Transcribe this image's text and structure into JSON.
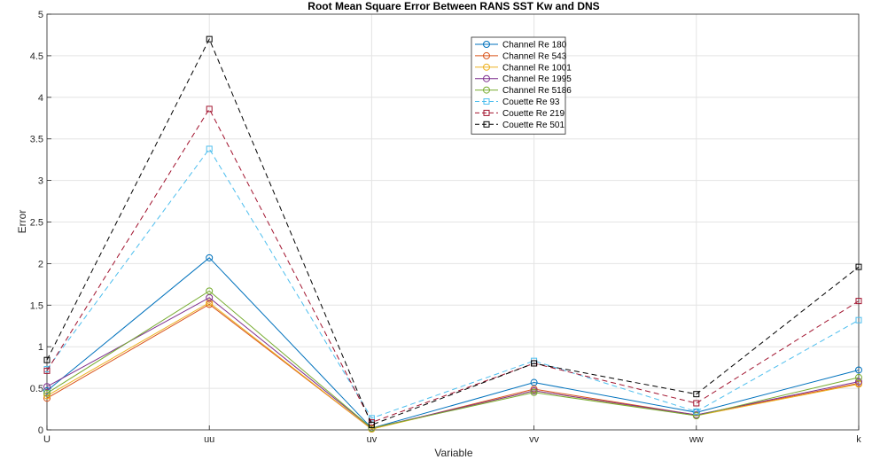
{
  "chart_data": {
    "type": "line",
    "title": "Root Mean Square Error Between RANS SST Kw and DNS",
    "xlabel": "Variable",
    "ylabel": "Error",
    "categories": [
      "U",
      "uu",
      "uv",
      "vv",
      "ww",
      "k"
    ],
    "ylim": [
      0,
      5
    ],
    "yticks": [
      0,
      0.5,
      1,
      1.5,
      2,
      2.5,
      3,
      3.5,
      4,
      4.5,
      5
    ],
    "ytick_labels": [
      "0",
      "0.5",
      "1",
      "1.5",
      "2",
      "2.5",
      "3",
      "3.5",
      "4",
      "4.5",
      "5"
    ],
    "grid": true,
    "legend_position": "top-center",
    "series": [
      {
        "name": "Channel Re 180",
        "color": "#0072BD",
        "marker": "circle",
        "dash": "solid",
        "values": [
          0.47,
          2.07,
          0.02,
          0.57,
          0.21,
          0.72
        ]
      },
      {
        "name": "Channel Re 543",
        "color": "#D95319",
        "marker": "circle",
        "dash": "solid",
        "values": [
          0.38,
          1.51,
          0.01,
          0.49,
          0.18,
          0.56
        ]
      },
      {
        "name": "Channel Re 1001",
        "color": "#EDB120",
        "marker": "circle",
        "dash": "solid",
        "values": [
          0.41,
          1.53,
          0.01,
          0.47,
          0.17,
          0.55
        ]
      },
      {
        "name": "Channel Re 1995",
        "color": "#7E2F8E",
        "marker": "circle",
        "dash": "solid",
        "values": [
          0.52,
          1.59,
          0.02,
          0.47,
          0.18,
          0.58
        ]
      },
      {
        "name": "Channel Re 5186",
        "color": "#77AC30",
        "marker": "circle",
        "dash": "solid",
        "values": [
          0.44,
          1.67,
          0.02,
          0.45,
          0.17,
          0.63
        ]
      },
      {
        "name": "Couette Re 93",
        "color": "#4DBEEE",
        "marker": "square",
        "dash": "dashed",
        "values": [
          0.73,
          3.38,
          0.14,
          0.83,
          0.22,
          1.32
        ]
      },
      {
        "name": "Couette Re 219",
        "color": "#A2142F",
        "marker": "square",
        "dash": "dashed",
        "values": [
          0.71,
          3.86,
          0.09,
          0.8,
          0.32,
          1.55
        ]
      },
      {
        "name": "Couette Re 501",
        "color": "#000000",
        "marker": "square",
        "dash": "dashed",
        "values": [
          0.84,
          4.7,
          0.06,
          0.8,
          0.43,
          1.96
        ]
      }
    ]
  }
}
